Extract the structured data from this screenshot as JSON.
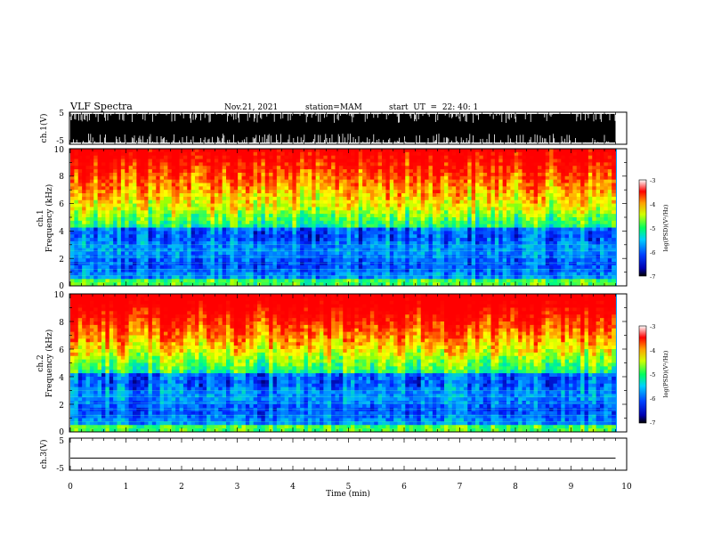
{
  "header": {
    "title": "VLF Spectra",
    "date": "Nov.21, 2021",
    "station": "station=MAM",
    "start": "start  UT  =  22: 40: 1"
  },
  "chart_data": [
    {
      "type": "line",
      "name": "ch1-waveform",
      "ylabel": "ch.1(V)",
      "ylim": [
        -5,
        5
      ],
      "yticks": [
        "5",
        "-5"
      ],
      "xlim": [
        0,
        10
      ],
      "description_values": {
        "min": -5,
        "max": 5
      }
    },
    {
      "type": "heatmap",
      "name": "ch1-spectrogram",
      "ylabel_line1": "ch.1",
      "ylabel_line2": "Frequency (kHz)",
      "ylim": [
        0,
        10
      ],
      "yticks": [
        "0",
        "2",
        "4",
        "6",
        "8",
        "10"
      ],
      "xlim": [
        0,
        10
      ],
      "data_end_min": 9.8,
      "colorbar": {
        "label": "log(PSD)(V²/Hz)",
        "range": [
          -7,
          -3
        ],
        "ticks": [
          "-3",
          "-4",
          "-5",
          "-6",
          "-7"
        ]
      }
    },
    {
      "type": "heatmap",
      "name": "ch2-spectrogram",
      "ylabel_line1": "ch.2",
      "ylabel_line2": "Frequency (kHz)",
      "ylim": [
        0,
        10
      ],
      "yticks": [
        "0",
        "2",
        "4",
        "6",
        "8",
        "10"
      ],
      "xlim": [
        0,
        10
      ],
      "data_end_min": 9.8,
      "colorbar": {
        "label": "log(PSD)(V²/Hz)",
        "range": [
          -7,
          -3
        ],
        "ticks": [
          "-3",
          "-4",
          "-5",
          "-6",
          "-7"
        ]
      }
    },
    {
      "type": "line",
      "name": "ch3-waveform",
      "ylabel": "ch.3(V)",
      "ylim": [
        -5,
        5
      ],
      "yticks": [
        "5",
        "-5"
      ],
      "xlim": [
        0,
        10
      ],
      "values": {
        "x": [
          0,
          9.8
        ],
        "y": [
          -1.2,
          -1.2
        ]
      }
    }
  ],
  "xaxis": {
    "label": "Time (min)",
    "ticks": [
      "0",
      "1",
      "2",
      "3",
      "4",
      "5",
      "6",
      "7",
      "8",
      "9",
      "10"
    ]
  },
  "colors": {
    "high": "#ff2000",
    "mid": "#00ff60",
    "low": "#0030ff"
  }
}
